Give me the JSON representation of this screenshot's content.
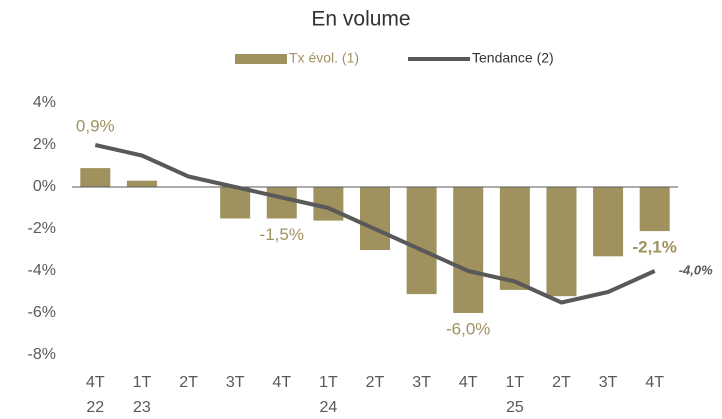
{
  "chart_data": {
    "type": "bar_line",
    "title": "En volume",
    "categories": [
      "4T 22",
      "1T 23",
      "2T",
      "3T",
      "4T",
      "1T 24",
      "2T",
      "3T",
      "4T",
      "1T 25",
      "2T",
      "3T",
      "4T"
    ],
    "series": [
      {
        "name": "Tx évol. (1)",
        "type": "bar",
        "color": "#a0925f",
        "values": [
          0.9,
          0.3,
          0,
          -1.5,
          -1.5,
          -1.6,
          -3.0,
          -5.1,
          -6.0,
          -4.9,
          -5.2,
          -3.3,
          -2.1
        ],
        "value_labels": [
          "0,9%",
          null,
          null,
          null,
          "-1,5%",
          null,
          null,
          null,
          "-6,0%",
          null,
          null,
          null,
          "-2,1%"
        ]
      },
      {
        "name": "Tendance (2)",
        "type": "line",
        "color": "#595959",
        "values": [
          2.0,
          1.5,
          0.5,
          0.0,
          -0.5,
          -1.0,
          -2.0,
          -3.0,
          -4.0,
          -4.5,
          -5.5,
          -5.0,
          -4.0
        ],
        "value_labels": [
          null,
          null,
          null,
          null,
          null,
          null,
          null,
          null,
          null,
          null,
          null,
          null,
          "-4,0%"
        ]
      }
    ],
    "ylim": [
      -8,
      4
    ],
    "yticks": [
      {
        "value": -8,
        "label": "-8%"
      },
      {
        "value": -6,
        "label": "-6%"
      },
      {
        "value": -4,
        "label": "-4%"
      },
      {
        "value": -2,
        "label": "-2%"
      },
      {
        "value": 0,
        "label": "0%"
      },
      {
        "value": 2,
        "label": "2%"
      },
      {
        "value": 4,
        "label": "4%"
      }
    ],
    "legend": "top"
  }
}
